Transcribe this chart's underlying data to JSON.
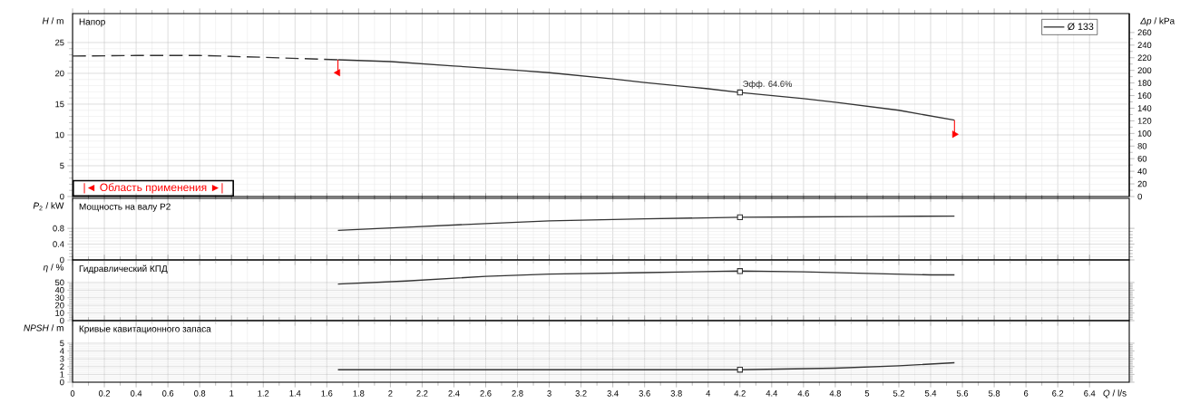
{
  "chart_data": [
    {
      "type": "line",
      "title": "Напор",
      "ylabel": "*H* / m",
      "y2label": "*Δp* / kPa",
      "xlim": [
        0,
        6.65
      ],
      "xticks": [
        0,
        0.2,
        0.4,
        0.6,
        0.8,
        1,
        1.2,
        1.4,
        1.6,
        1.8,
        2,
        2.2,
        2.4,
        2.6,
        2.8,
        3,
        3.2,
        3.4,
        3.6,
        3.8,
        4,
        4.2,
        4.4,
        4.6,
        4.8,
        5,
        5.2,
        5.4,
        5.6,
        5.8,
        6,
        6.2,
        6.4
      ],
      "ylim": [
        0,
        29.7
      ],
      "yticks": [
        0,
        5,
        10,
        15,
        20,
        25
      ],
      "y2lim": [
        0,
        290
      ],
      "y2ticks": [
        0,
        20,
        40,
        60,
        80,
        100,
        120,
        140,
        160,
        180,
        200,
        220,
        240,
        260
      ],
      "tick_labels": "y",
      "grid": true,
      "legend": "top right",
      "series": [
        {
          "name": "Ø 133",
          "color": "#333333",
          "x": [
            1.67,
            2.0,
            2.4,
            2.8,
            3.0,
            3.4,
            3.6,
            4.0,
            4.2,
            4.6,
            4.8,
            5.2,
            5.55
          ],
          "values": [
            22.2,
            21.9,
            21.2,
            20.5,
            20.1,
            19.1,
            18.5,
            17.5,
            16.9,
            15.9,
            15.3,
            14.0,
            12.4
          ]
        },
        {
          "color": "#333333",
          "line_style": "dashed",
          "x": [
            0,
            0.4,
            0.8,
            1.2,
            1.67
          ],
          "values": [
            22.8,
            22.9,
            22.9,
            22.6,
            22.2
          ]
        },
        {
          "type": "scatter",
          "marker": "square",
          "color": "#333333",
          "x": [
            4.2
          ],
          "values": [
            16.9
          ]
        },
        {
          "type": "scatter",
          "marker": "triangle",
          "color": "#ff0000",
          "x": [
            1.67,
            5.55
          ],
          "values": [
            20.1,
            10.1
          ],
          "errors": [
            [
              20.1,
              22.2
            ],
            [
              10.1,
              12.4
            ]
          ]
        }
      ],
      "annotations": [
        "|◄ Область применения ►|",
        {
          "text": "Эфф. 64.6%",
          "x": 4.2,
          "y": 16.9
        }
      ]
    },
    {
      "type": "line",
      "title": "Мощность на валу P2",
      "ylabel": "*P*$_{2}$ / kW",
      "xlim": [
        0,
        6.65
      ],
      "xticks": [
        0,
        0.2,
        0.4,
        0.6,
        0.8,
        1,
        1.2,
        1.4,
        1.6,
        1.8,
        2,
        2.2,
        2.4,
        2.6,
        2.8,
        3,
        3.2,
        3.4,
        3.6,
        3.8,
        4,
        4.2,
        4.4,
        4.6,
        4.8,
        5,
        5.2,
        5.4,
        5.6,
        5.8,
        6,
        6.2,
        6.4
      ],
      "ylim": [
        0,
        1.56
      ],
      "yticks": [
        0,
        0.4,
        0.8
      ],
      "tick_labels": "y",
      "grid": true,
      "series": [
        {
          "color": "#333333",
          "x": [
            1.67,
            2.1,
            2.6,
            3.0,
            3.6,
            4.2,
            4.6,
            5.0,
            5.55
          ],
          "values": [
            0.75,
            0.83,
            0.92,
            0.99,
            1.04,
            1.08,
            1.09,
            1.1,
            1.11
          ]
        },
        {
          "type": "scatter",
          "marker": "square",
          "color": "#333333",
          "x": [
            4.2
          ],
          "values": [
            1.08
          ]
        }
      ]
    },
    {
      "type": "line",
      "title": "Гидравлический КПД",
      "ylabel": "*η* / %",
      "xlim": [
        0,
        6.65
      ],
      "xticks": [
        0,
        0.2,
        0.4,
        0.6,
        0.8,
        1,
        1.2,
        1.4,
        1.6,
        1.8,
        2,
        2.2,
        2.4,
        2.6,
        2.8,
        3,
        3.2,
        3.4,
        3.6,
        3.8,
        4,
        4.2,
        4.4,
        4.6,
        4.8,
        5,
        5.2,
        5.4,
        5.6,
        5.8,
        6,
        6.2,
        6.4
      ],
      "ylim": [
        0,
        79.6
      ],
      "yticks": [
        0,
        10,
        20,
        30,
        40,
        50
      ],
      "tick_labels": "y",
      "grid": true,
      "series": [
        {
          "color": "#333333",
          "x": [
            1.67,
            2.1,
            2.6,
            3.0,
            3.6,
            4.2,
            4.6,
            5.0,
            5.4,
            5.55
          ],
          "values": [
            48,
            52,
            58,
            61,
            63,
            65,
            64,
            62,
            60,
            60
          ]
        },
        {
          "type": "scatter",
          "marker": "square",
          "color": "#333333",
          "x": [
            4.2
          ],
          "values": [
            65
          ]
        }
      ]
    },
    {
      "type": "line",
      "title": "Кривые кавитационного запаса",
      "ylabel": "*NPSH* / m",
      "xlabel": "*Q* / l/s",
      "xlim": [
        0,
        6.65
      ],
      "xticks": [
        0,
        0.2,
        0.4,
        0.6,
        0.8,
        1,
        1.2,
        1.4,
        1.6,
        1.8,
        2,
        2.2,
        2.4,
        2.6,
        2.8,
        3,
        3.2,
        3.4,
        3.6,
        3.8,
        4,
        4.2,
        4.4,
        4.6,
        4.8,
        5,
        5.2,
        5.4,
        5.6,
        5.8,
        6,
        6.2,
        6.4
      ],
      "ylim": [
        0,
        7.9
      ],
      "yticks": [
        0,
        1,
        2,
        3,
        4,
        5
      ],
      "grid": true,
      "series": [
        {
          "color": "#333333",
          "x": [
            1.67,
            3.0,
            3.6,
            4.2,
            4.8,
            5.2,
            5.55
          ],
          "values": [
            1.6,
            1.6,
            1.6,
            1.6,
            1.8,
            2.1,
            2.5
          ]
        },
        {
          "type": "scatter",
          "marker": "square",
          "color": "#333333",
          "x": [
            4.2
          ],
          "values": [
            1.6
          ]
        }
      ]
    }
  ]
}
